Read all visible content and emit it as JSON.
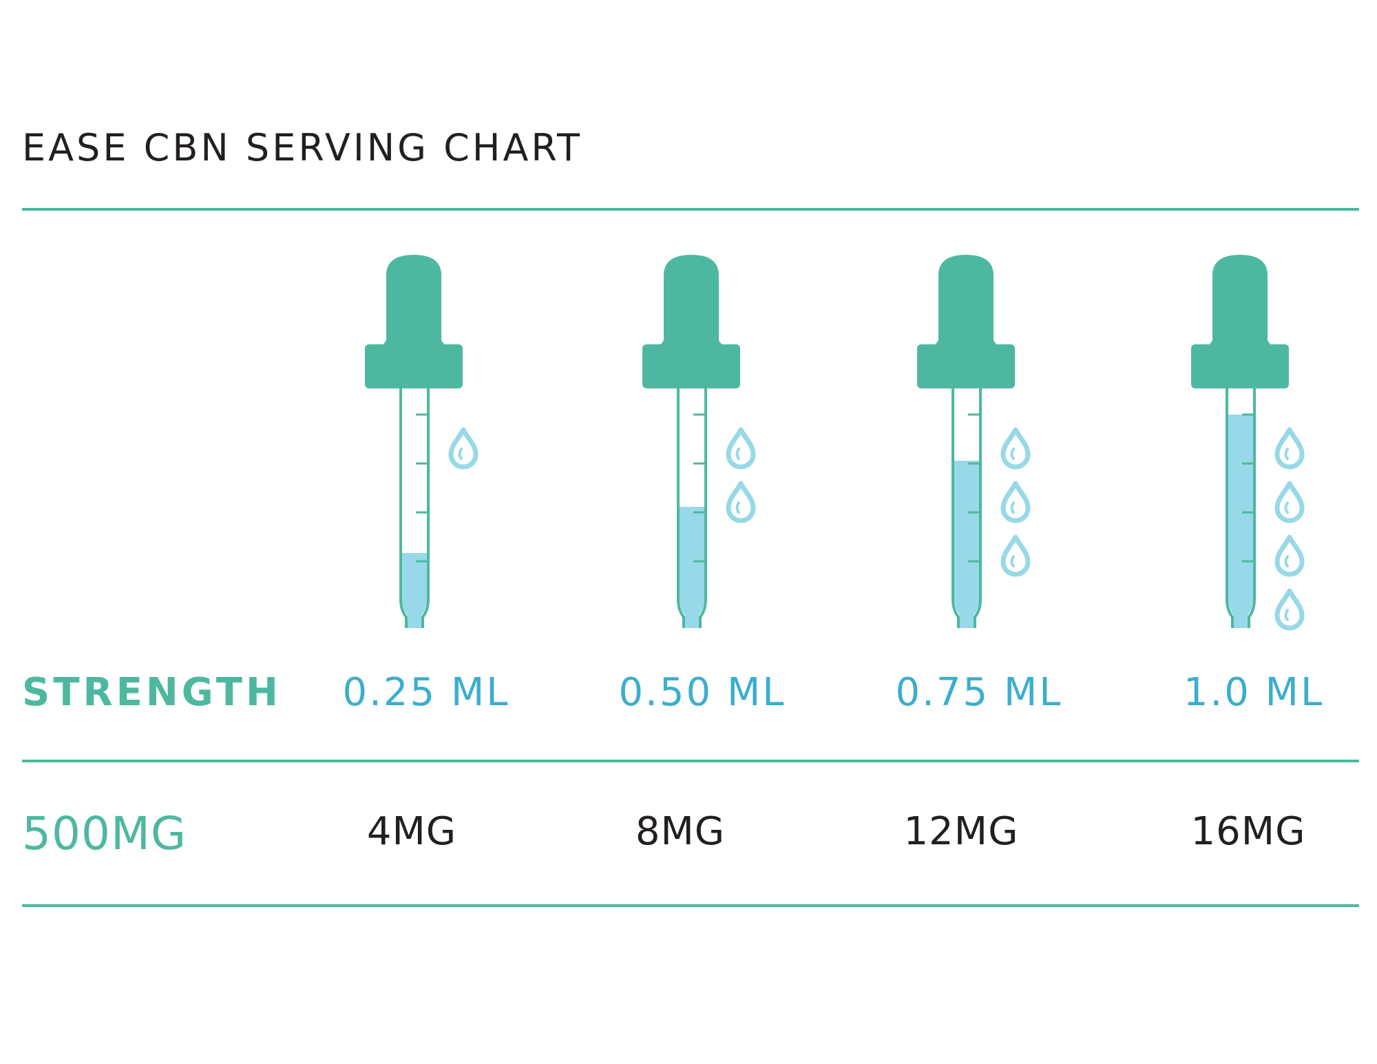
{
  "title": "EASE CBN SERVING CHART",
  "row_header": {
    "label": "STRENGTH",
    "strength": "500MG"
  },
  "colors": {
    "accent": "#4db89f",
    "liquid": "#97d9e8",
    "drop": "#97d9e8",
    "ml_text": "#3aaecf",
    "text": "#231f20"
  },
  "servings": [
    {
      "ml": "0.25 ML",
      "mg": "4MG",
      "fill_fraction": 0.25,
      "drops": 1
    },
    {
      "ml": "0.50 ML",
      "mg": "8MG",
      "fill_fraction": 0.5,
      "drops": 2
    },
    {
      "ml": "0.75 ML",
      "mg": "12MG",
      "fill_fraction": 0.75,
      "drops": 3
    },
    {
      "ml": "1.0 ML",
      "mg": "16MG",
      "fill_fraction": 1.0,
      "drops": 4
    }
  ],
  "icons": {
    "dropper": "dropper-icon",
    "drop": "drop-icon"
  }
}
